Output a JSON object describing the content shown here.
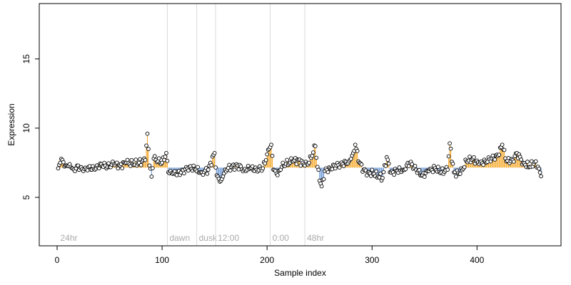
{
  "chart_data": {
    "type": "scatter",
    "title": "",
    "xlabel": "Sample index",
    "ylabel": "Expression",
    "xlim": [
      -17,
      480
    ],
    "ylim": [
      1.5,
      19
    ],
    "xticks": [
      0,
      100,
      200,
      300,
      400
    ],
    "yticks": [
      5,
      10,
      15
    ],
    "baseline": 7.15,
    "colors": {
      "above": "#f5a623",
      "below": "#6a96d6",
      "point_fill": "#ffffff",
      "point_stroke": "#000000",
      "marker_line": "#d9d9d9",
      "marker_text": "#aaaaaa"
    },
    "phase_markers": [
      {
        "x": 1,
        "label": "24hr",
        "line": false
      },
      {
        "x": 105,
        "label": "dawn",
        "line": true
      },
      {
        "x": 133,
        "label": "dusk",
        "line": true
      },
      {
        "x": 151,
        "label": "12:00",
        "line": true
      },
      {
        "x": 203,
        "label": "0:00",
        "line": true
      },
      {
        "x": 236,
        "label": "48hr",
        "line": true
      }
    ],
    "series": [
      {
        "x": [
          1,
          461
        ],
        "knots": [
          [
            1,
            7.1
          ],
          [
            3,
            7.5
          ],
          [
            5,
            7.7
          ],
          [
            8,
            7.3
          ],
          [
            12,
            7.4
          ],
          [
            16,
            7.0
          ],
          [
            20,
            7.3
          ],
          [
            25,
            6.9
          ],
          [
            30,
            7.2
          ],
          [
            36,
            7.0
          ],
          [
            42,
            7.4
          ],
          [
            48,
            7.2
          ],
          [
            54,
            7.4
          ],
          [
            60,
            7.3
          ],
          [
            66,
            7.5
          ],
          [
            72,
            7.4
          ],
          [
            78,
            7.5
          ],
          [
            84,
            7.7
          ],
          [
            86,
            9.6
          ],
          [
            88,
            7.3
          ],
          [
            90,
            6.5
          ],
          [
            92,
            7.8
          ],
          [
            96,
            7.6
          ],
          [
            100,
            7.5
          ],
          [
            104,
            8.2
          ],
          [
            106,
            6.8
          ],
          [
            110,
            6.7
          ],
          [
            118,
            6.8
          ],
          [
            126,
            7.2
          ],
          [
            132,
            7.0
          ],
          [
            138,
            6.8
          ],
          [
            144,
            7.0
          ],
          [
            150,
            8.2
          ],
          [
            152,
            6.6
          ],
          [
            156,
            6.2
          ],
          [
            160,
            7.0
          ],
          [
            166,
            7.2
          ],
          [
            172,
            7.3
          ],
          [
            178,
            7.0
          ],
          [
            184,
            7.1
          ],
          [
            190,
            7.0
          ],
          [
            196,
            7.1
          ],
          [
            202,
            8.5
          ],
          [
            204,
            8.8
          ],
          [
            206,
            7.0
          ],
          [
            210,
            6.6
          ],
          [
            214,
            7.2
          ],
          [
            218,
            7.4
          ],
          [
            224,
            7.6
          ],
          [
            230,
            7.7
          ],
          [
            236,
            7.3
          ],
          [
            240,
            7.5
          ],
          [
            246,
            8.7
          ],
          [
            248,
            7.2
          ],
          [
            251,
            6.0
          ],
          [
            252,
            5.8
          ],
          [
            255,
            6.9
          ],
          [
            260,
            7.1
          ],
          [
            266,
            7.3
          ],
          [
            272,
            7.4
          ],
          [
            278,
            7.6
          ],
          [
            282,
            8.2
          ],
          [
            284,
            8.8
          ],
          [
            288,
            7.5
          ],
          [
            292,
            7.0
          ],
          [
            296,
            6.8
          ],
          [
            302,
            6.7
          ],
          [
            306,
            6.5
          ],
          [
            310,
            6.4
          ],
          [
            314,
            7.9
          ],
          [
            318,
            6.8
          ],
          [
            324,
            6.9
          ],
          [
            330,
            7.0
          ],
          [
            336,
            7.5
          ],
          [
            342,
            7.0
          ],
          [
            348,
            6.6
          ],
          [
            354,
            6.9
          ],
          [
            360,
            7.1
          ],
          [
            366,
            6.8
          ],
          [
            372,
            7.0
          ],
          [
            374,
            8.9
          ],
          [
            378,
            6.8
          ],
          [
            384,
            6.7
          ],
          [
            390,
            7.6
          ],
          [
            396,
            7.8
          ],
          [
            402,
            7.4
          ],
          [
            408,
            7.6
          ],
          [
            414,
            7.8
          ],
          [
            420,
            8.0
          ],
          [
            424,
            8.8
          ],
          [
            428,
            7.6
          ],
          [
            434,
            7.7
          ],
          [
            438,
            8.2
          ],
          [
            444,
            7.5
          ],
          [
            450,
            7.2
          ],
          [
            456,
            7.6
          ],
          [
            460,
            6.8
          ]
        ],
        "interpolation": "linear"
      }
    ]
  }
}
